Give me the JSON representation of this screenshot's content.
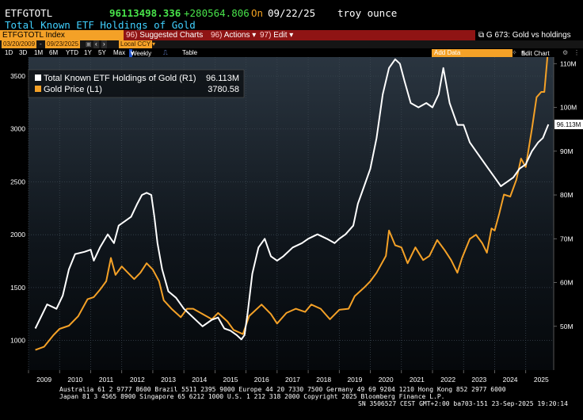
{
  "header": {
    "ticker": "ETFGTOTL",
    "last_price": "96113498.336",
    "change": "+280564.806",
    "on_label": "On",
    "date": "09/22/25",
    "unit": "troy ounce",
    "security_name": "Total Known ETF Holdings of Gold"
  },
  "menu": {
    "index": "ETFGTOTL Index",
    "suggested": "Suggested Charts",
    "suggested_num": "96)",
    "actions": "Actions",
    "actions_num": "96)",
    "edit": "Edit",
    "edit_num": "97)",
    "chart_title": "G 673: Gold vs holdings"
  },
  "range": {
    "start": "03/20/2009",
    "end": "09/23/2025",
    "currency": "Local CCY"
  },
  "periods": {
    "items": [
      "1D",
      "3D",
      "1M",
      "6M",
      "YTD",
      "1Y",
      "5Y",
      "Max"
    ],
    "frequency": "Weekly",
    "table": "Table",
    "add_data": "Add Data",
    "edit_chart": "Edit Chart"
  },
  "colors": {
    "holdings": "#ffffff",
    "gold": "#f4a127",
    "accent_bar": "#8f1414",
    "accent_orange": "#f4a127",
    "green": "#48e34a",
    "cyan": "#40d0ff"
  },
  "chart_data": {
    "type": "line",
    "x_ticks": [
      "2009",
      "2010",
      "2011",
      "2012",
      "2013",
      "2014",
      "2015",
      "2016",
      "2017",
      "2018",
      "2019",
      "2020",
      "2021",
      "2022",
      "2023",
      "2024",
      "2025"
    ],
    "left_axis": {
      "ticks": [
        1000,
        1500,
        2000,
        2500,
        3000,
        3500
      ],
      "range": [
        720,
        3680
      ]
    },
    "right_axis": {
      "ticks": [
        "50M",
        "60M",
        "70M",
        "80M",
        "90M",
        "100M",
        "110M"
      ],
      "range": [
        40,
        111.5
      ]
    },
    "series": [
      {
        "name": "Total Known ETF Holdings of Gold (R1)",
        "last": "96.113M",
        "axis": "right",
        "points": [
          [
            2009.22,
            49.5
          ],
          [
            2009.6,
            55
          ],
          [
            2009.9,
            54
          ],
          [
            2010.1,
            57
          ],
          [
            2010.3,
            63
          ],
          [
            2010.5,
            66.5
          ],
          [
            2010.8,
            67
          ],
          [
            2011.0,
            67.5
          ],
          [
            2011.1,
            65
          ],
          [
            2011.3,
            68
          ],
          [
            2011.55,
            71
          ],
          [
            2011.75,
            69
          ],
          [
            2011.9,
            73
          ],
          [
            2012.1,
            74
          ],
          [
            2012.3,
            75
          ],
          [
            2012.5,
            78
          ],
          [
            2012.65,
            80
          ],
          [
            2012.8,
            80.5
          ],
          [
            2012.95,
            80
          ],
          [
            2013.05,
            75
          ],
          [
            2013.15,
            69
          ],
          [
            2013.3,
            63
          ],
          [
            2013.5,
            58
          ],
          [
            2013.75,
            56.5
          ],
          [
            2014.0,
            54
          ],
          [
            2014.3,
            52
          ],
          [
            2014.6,
            50
          ],
          [
            2014.9,
            51.5
          ],
          [
            2015.1,
            52
          ],
          [
            2015.3,
            49.5
          ],
          [
            2015.5,
            49
          ],
          [
            2015.7,
            48
          ],
          [
            2015.85,
            47
          ],
          [
            2015.95,
            48
          ],
          [
            2016.05,
            53
          ],
          [
            2016.2,
            62
          ],
          [
            2016.4,
            68
          ],
          [
            2016.6,
            70
          ],
          [
            2016.8,
            66
          ],
          [
            2017.0,
            65
          ],
          [
            2017.2,
            66
          ],
          [
            2017.5,
            68
          ],
          [
            2017.8,
            69
          ],
          [
            2018.0,
            70
          ],
          [
            2018.3,
            71
          ],
          [
            2018.6,
            70
          ],
          [
            2018.85,
            69
          ],
          [
            2019.0,
            70
          ],
          [
            2019.2,
            71
          ],
          [
            2019.45,
            73
          ],
          [
            2019.6,
            78
          ],
          [
            2019.8,
            82
          ],
          [
            2020.0,
            86
          ],
          [
            2020.2,
            93
          ],
          [
            2020.4,
            103
          ],
          [
            2020.6,
            109
          ],
          [
            2020.8,
            111
          ],
          [
            2020.95,
            110
          ],
          [
            2021.1,
            106
          ],
          [
            2021.3,
            101
          ],
          [
            2021.55,
            100
          ],
          [
            2021.8,
            101
          ],
          [
            2022.0,
            100
          ],
          [
            2022.2,
            103
          ],
          [
            2022.35,
            109
          ],
          [
            2022.55,
            101
          ],
          [
            2022.8,
            96
          ],
          [
            2023.0,
            96
          ],
          [
            2023.2,
            92
          ],
          [
            2023.5,
            89
          ],
          [
            2023.8,
            86
          ],
          [
            2024.0,
            84
          ],
          [
            2024.2,
            82
          ],
          [
            2024.4,
            83
          ],
          [
            2024.6,
            84
          ],
          [
            2024.8,
            86
          ],
          [
            2025.0,
            87
          ],
          [
            2025.2,
            90
          ],
          [
            2025.4,
            92
          ],
          [
            2025.55,
            93
          ],
          [
            2025.73,
            96.11
          ]
        ]
      },
      {
        "name": "Gold Price (L1)",
        "last": "3780.58",
        "axis": "left",
        "points": [
          [
            2009.22,
            910
          ],
          [
            2009.5,
            940
          ],
          [
            2009.8,
            1050
          ],
          [
            2010.0,
            1110
          ],
          [
            2010.3,
            1140
          ],
          [
            2010.6,
            1230
          ],
          [
            2010.9,
            1390
          ],
          [
            2011.1,
            1410
          ],
          [
            2011.3,
            1480
          ],
          [
            2011.5,
            1560
          ],
          [
            2011.65,
            1780
          ],
          [
            2011.8,
            1620
          ],
          [
            2012.0,
            1700
          ],
          [
            2012.2,
            1640
          ],
          [
            2012.4,
            1580
          ],
          [
            2012.6,
            1640
          ],
          [
            2012.8,
            1730
          ],
          [
            2013.0,
            1670
          ],
          [
            2013.2,
            1560
          ],
          [
            2013.35,
            1380
          ],
          [
            2013.6,
            1300
          ],
          [
            2013.9,
            1220
          ],
          [
            2014.1,
            1300
          ],
          [
            2014.3,
            1300
          ],
          [
            2014.6,
            1250
          ],
          [
            2014.9,
            1200
          ],
          [
            2015.1,
            1260
          ],
          [
            2015.4,
            1180
          ],
          [
            2015.6,
            1100
          ],
          [
            2015.9,
            1060
          ],
          [
            2016.1,
            1230
          ],
          [
            2016.5,
            1340
          ],
          [
            2016.8,
            1250
          ],
          [
            2017.0,
            1160
          ],
          [
            2017.3,
            1260
          ],
          [
            2017.6,
            1300
          ],
          [
            2017.9,
            1270
          ],
          [
            2018.1,
            1340
          ],
          [
            2018.4,
            1300
          ],
          [
            2018.7,
            1200
          ],
          [
            2019.0,
            1290
          ],
          [
            2019.3,
            1300
          ],
          [
            2019.5,
            1420
          ],
          [
            2019.8,
            1500
          ],
          [
            2020.0,
            1560
          ],
          [
            2020.2,
            1640
          ],
          [
            2020.5,
            1800
          ],
          [
            2020.6,
            2040
          ],
          [
            2020.8,
            1900
          ],
          [
            2021.0,
            1880
          ],
          [
            2021.2,
            1730
          ],
          [
            2021.45,
            1880
          ],
          [
            2021.7,
            1760
          ],
          [
            2021.9,
            1800
          ],
          [
            2022.15,
            1950
          ],
          [
            2022.4,
            1850
          ],
          [
            2022.6,
            1760
          ],
          [
            2022.8,
            1640
          ],
          [
            2022.95,
            1780
          ],
          [
            2023.2,
            1960
          ],
          [
            2023.4,
            2000
          ],
          [
            2023.6,
            1920
          ],
          [
            2023.75,
            1830
          ],
          [
            2023.9,
            2060
          ],
          [
            2024.0,
            2040
          ],
          [
            2024.15,
            2200
          ],
          [
            2024.3,
            2380
          ],
          [
            2024.5,
            2360
          ],
          [
            2024.7,
            2520
          ],
          [
            2024.85,
            2720
          ],
          [
            2025.0,
            2640
          ],
          [
            2025.2,
            3000
          ],
          [
            2025.35,
            3300
          ],
          [
            2025.5,
            3350
          ],
          [
            2025.6,
            3350
          ],
          [
            2025.73,
            3780.58
          ]
        ]
      }
    ]
  },
  "footer": {
    "line1": "Australia 61 2 9777 8600 Brazil 5511 2395 9000 Europe 44 20 7330 7500 Germany 49 69 9204 1210 Hong Kong 852 2977 6000",
    "line2": "Japan 81 3 4565 8900        Singapore 65 6212 1000        U.S. 1 212 318 2000          Copyright 2025 Bloomberg Finance L.P.",
    "line3": "SN 3506527 CEST GMT+2:00 ba703-151 23-Sep-2025 19:20:14"
  }
}
